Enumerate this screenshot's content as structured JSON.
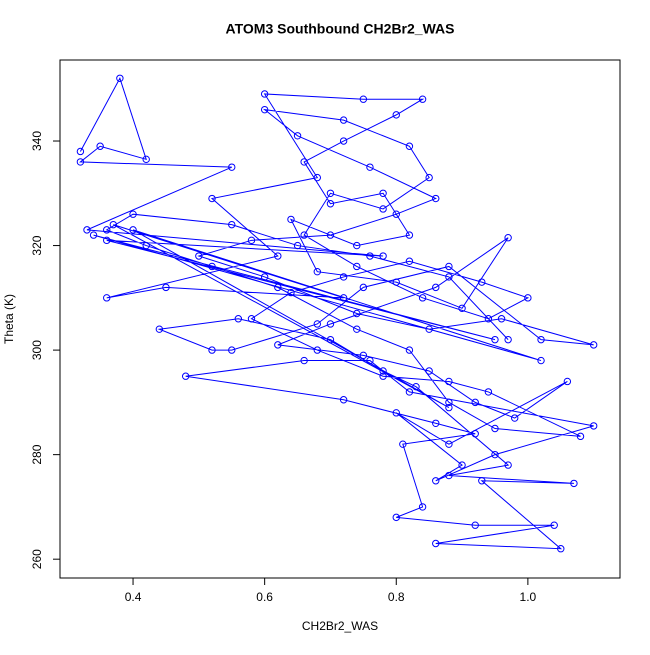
{
  "chart_data": {
    "type": "line",
    "markers": true,
    "title": "ATOM3 Southbound CH2Br2_WAS",
    "x_label": "CH2Br2_WAS",
    "y_label": "Theta (K)",
    "x": [
      0.32,
      0.38,
      0.42,
      0.35,
      0.32,
      0.55,
      0.33,
      0.78,
      0.36,
      0.95,
      0.34,
      1.02,
      0.4,
      0.88,
      0.37,
      0.72,
      0.45,
      0.36,
      0.62,
      0.52,
      0.68,
      0.6,
      0.75,
      0.84,
      0.8,
      0.72,
      0.66,
      0.7,
      0.78,
      0.82,
      0.74,
      0.64,
      0.68,
      0.8,
      0.9,
      0.97,
      0.86,
      0.7,
      0.62,
      0.75,
      0.85,
      0.92,
      0.98,
      1.06,
      0.88,
      0.8,
      0.9,
      0.86,
      0.95,
      1.1,
      0.82,
      0.76,
      0.66,
      0.48,
      0.72,
      0.86,
      0.92,
      0.81,
      0.84,
      0.8,
      0.92,
      1.04,
      0.86,
      1.05,
      0.93,
      1.07,
      0.88,
      0.97,
      0.83,
      0.78,
      0.7,
      0.56,
      0.44,
      0.52,
      0.55,
      0.68,
      0.75,
      0.88,
      1.02,
      1.1,
      0.96,
      0.85,
      0.74,
      0.6,
      0.5,
      0.58,
      0.7,
      0.8,
      0.86,
      0.76,
      0.65,
      0.6,
      0.72,
      0.82,
      0.85,
      0.78,
      0.7,
      0.66,
      0.74,
      0.84,
      0.94,
      1.0,
      0.93,
      0.82,
      0.72,
      0.64,
      0.58,
      0.68,
      0.78,
      0.88,
      0.94,
      1.08,
      0.95,
      0.88,
      0.82,
      0.74,
      0.62,
      0.52,
      0.42,
      0.36,
      0.4,
      0.55,
      0.65,
      0.76,
      0.88,
      0.97
    ],
    "series": [
      {
        "color": "#0000ff",
        "values": [
          338,
          352,
          336.5,
          339,
          336,
          335,
          323,
          318,
          321,
          302,
          322,
          298,
          323,
          289,
          324,
          310,
          312,
          310,
          318,
          329,
          333,
          349,
          348,
          348,
          345,
          340,
          336,
          328,
          330,
          322,
          320,
          325,
          315,
          313,
          308,
          321.5,
          312,
          305,
          301,
          299,
          296,
          290,
          287,
          294,
          282,
          288,
          278,
          275,
          280,
          285.5,
          292,
          298,
          298,
          295,
          290.5,
          286,
          284,
          282,
          270,
          268,
          266.5,
          266.5,
          263,
          262,
          275,
          274.5,
          276,
          278,
          293,
          296,
          302,
          306,
          304,
          300,
          300,
          305,
          312,
          316,
          302,
          301,
          306,
          304,
          307,
          314,
          318,
          321,
          322,
          326,
          329,
          335,
          341,
          346,
          344,
          339,
          333,
          327,
          330,
          322,
          316,
          310,
          306,
          310,
          313,
          317,
          314,
          311,
          306,
          300,
          295,
          294,
          292,
          283.5,
          285,
          290,
          300,
          304,
          312,
          316,
          320,
          323,
          326,
          324,
          320,
          318,
          314,
          302
        ]
      }
    ],
    "xlim": [
      0.289,
      1.14
    ],
    "ylim": [
      256.4,
      355.5
    ],
    "xticks": [
      0.4,
      0.6,
      0.8,
      {
        "value": 1,
        "label": "1.0"
      }
    ],
    "yticks": [
      260,
      280,
      300,
      320,
      340
    ]
  }
}
